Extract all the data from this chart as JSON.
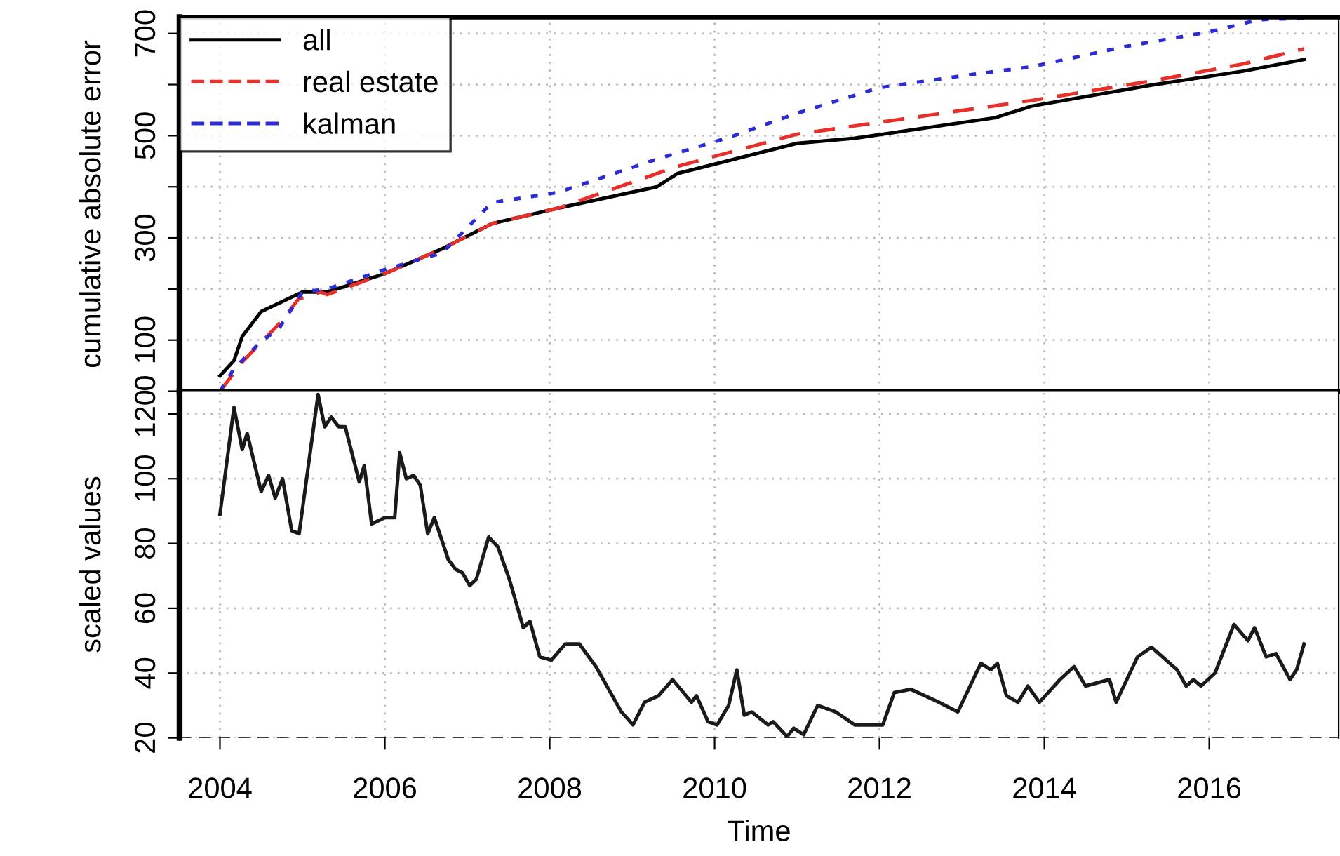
{
  "chart_data": [
    {
      "type": "line",
      "ylabel": "cumulative absolute error",
      "xlim": [
        2003.51,
        2017.57
      ],
      "xticks": [
        2004,
        2006,
        2008,
        2010,
        2012,
        2014,
        2016
      ],
      "ylim": [
        0,
        732
      ],
      "yticks": [
        0,
        100,
        {
          "value": 200,
          "label": null
        },
        300,
        {
          "value": 400,
          "label": null
        },
        500,
        {
          "value": 600,
          "label": null
        },
        700
      ],
      "tick_labels": "y",
      "grid": true,
      "legend": "top left",
      "series": [
        {
          "name": "all",
          "color": "#000000",
          "line_style": "solid",
          "x": [
            2004.0,
            2004.17,
            2004.27,
            2004.5,
            2005.0,
            2005.3,
            2006.0,
            2006.7,
            2007.3,
            2008.1,
            2009.3,
            2009.55,
            2011.0,
            2011.7,
            2013.4,
            2013.85,
            2015.3,
            2016.4,
            2017.15
          ],
          "values": [
            30,
            60,
            107,
            156,
            194,
            194,
            230,
            279,
            328,
            358,
            400,
            426,
            485,
            495,
            535,
            558,
            599,
            626,
            649
          ]
        },
        {
          "name": "real estate",
          "color": "#e8302a",
          "line_style": "dashed",
          "x": [
            2004.0,
            2004.27,
            2004.73,
            2004.95,
            2005.22,
            2005.3,
            2006.0,
            2006.7,
            2007.3,
            2008.1,
            2009.55,
            2011.0,
            2013.85,
            2015.3,
            2016.4,
            2017.15
          ],
          "values": [
            0,
            57,
            134,
            180,
            194,
            189,
            230,
            279,
            328,
            358,
            440,
            503,
            569,
            607,
            640,
            670
          ]
        },
        {
          "name": "kalman",
          "color": "#2b2bd8",
          "line_style": "dotted",
          "x": [
            2004.0,
            2004.17,
            2004.44,
            2004.73,
            2005.0,
            2005.3,
            2006.0,
            2006.7,
            2007.3,
            2008.1,
            2009.3,
            2010.2,
            2011.0,
            2012.0,
            2013.0,
            2013.85,
            2015.0,
            2016.0,
            2016.6,
            2017.15
          ],
          "values": [
            0,
            44,
            88,
            126,
            194,
            200,
            238,
            271,
            369,
            389,
            454,
            498,
            544,
            594,
            617,
            635,
            675,
            703,
            727,
            730
          ]
        }
      ]
    },
    {
      "type": "line",
      "ylabel": "scaled values",
      "xlabel": "Time",
      "xlim": [
        2003.51,
        2017.57
      ],
      "xticks": [
        2004,
        2006,
        2008,
        2010,
        2012,
        2014,
        2016
      ],
      "ylim": [
        20,
        127
      ],
      "yticks": [
        20,
        40,
        60,
        80,
        100,
        120
      ],
      "grid": true,
      "ref_lines": [
        {
          "axis": "y",
          "value": 20,
          "color": "#000000",
          "line_style": "dashed"
        }
      ],
      "series": [
        {
          "color": "#1a1a1a",
          "line_style": "solid",
          "x": [
            2004.0,
            2004.17,
            2004.27,
            2004.33,
            2004.5,
            2004.59,
            2004.67,
            2004.76,
            2004.87,
            2004.96,
            2005.19,
            2005.27,
            2005.35,
            2005.44,
            2005.52,
            2005.69,
            2005.75,
            2005.84,
            2006.0,
            2006.12,
            2006.18,
            2006.26,
            2006.35,
            2006.43,
            2006.52,
            2006.6,
            2006.77,
            2006.86,
            2006.94,
            2007.03,
            2007.11,
            2007.26,
            2007.37,
            2007.51,
            2007.68,
            2007.76,
            2007.88,
            2008.02,
            2008.19,
            2008.36,
            2008.56,
            2008.87,
            2009.01,
            2009.15,
            2009.32,
            2009.49,
            2009.72,
            2009.78,
            2009.92,
            2010.03,
            2010.17,
            2010.27,
            2010.36,
            2010.45,
            2010.65,
            2010.71,
            2010.88,
            2010.96,
            2011.08,
            2011.25,
            2011.47,
            2011.7,
            2011.81,
            2012.04,
            2012.18,
            2012.38,
            2012.72,
            2012.95,
            2013.23,
            2013.35,
            2013.43,
            2013.54,
            2013.68,
            2013.8,
            2013.94,
            2014.19,
            2014.36,
            2014.5,
            2014.79,
            2014.87,
            2015.13,
            2015.3,
            2015.61,
            2015.72,
            2015.81,
            2015.9,
            2016.07,
            2016.3,
            2016.47,
            2016.55,
            2016.69,
            2016.81,
            2016.98,
            2017.06,
            2017.15
          ],
          "values": [
            89,
            122,
            109,
            114,
            96,
            101,
            94,
            100,
            84,
            83,
            126,
            116,
            119,
            116,
            116,
            99,
            104,
            86,
            88,
            88,
            108,
            100,
            101,
            98,
            83,
            88,
            75,
            72,
            71,
            67,
            69,
            82,
            79,
            69,
            54,
            56,
            45,
            44,
            49,
            49,
            42,
            28,
            24,
            31,
            33,
            38,
            31,
            33,
            25,
            24,
            30,
            41,
            27,
            28,
            24,
            25,
            20.4,
            23,
            21,
            30,
            28,
            24,
            24,
            24,
            34,
            35,
            31,
            28,
            43,
            41,
            43,
            33,
            31,
            36,
            31,
            38,
            42,
            36,
            38,
            31,
            45,
            48,
            41,
            36,
            38,
            36,
            40,
            55,
            50,
            54,
            45,
            46,
            38,
            41,
            49
          ]
        }
      ]
    }
  ]
}
